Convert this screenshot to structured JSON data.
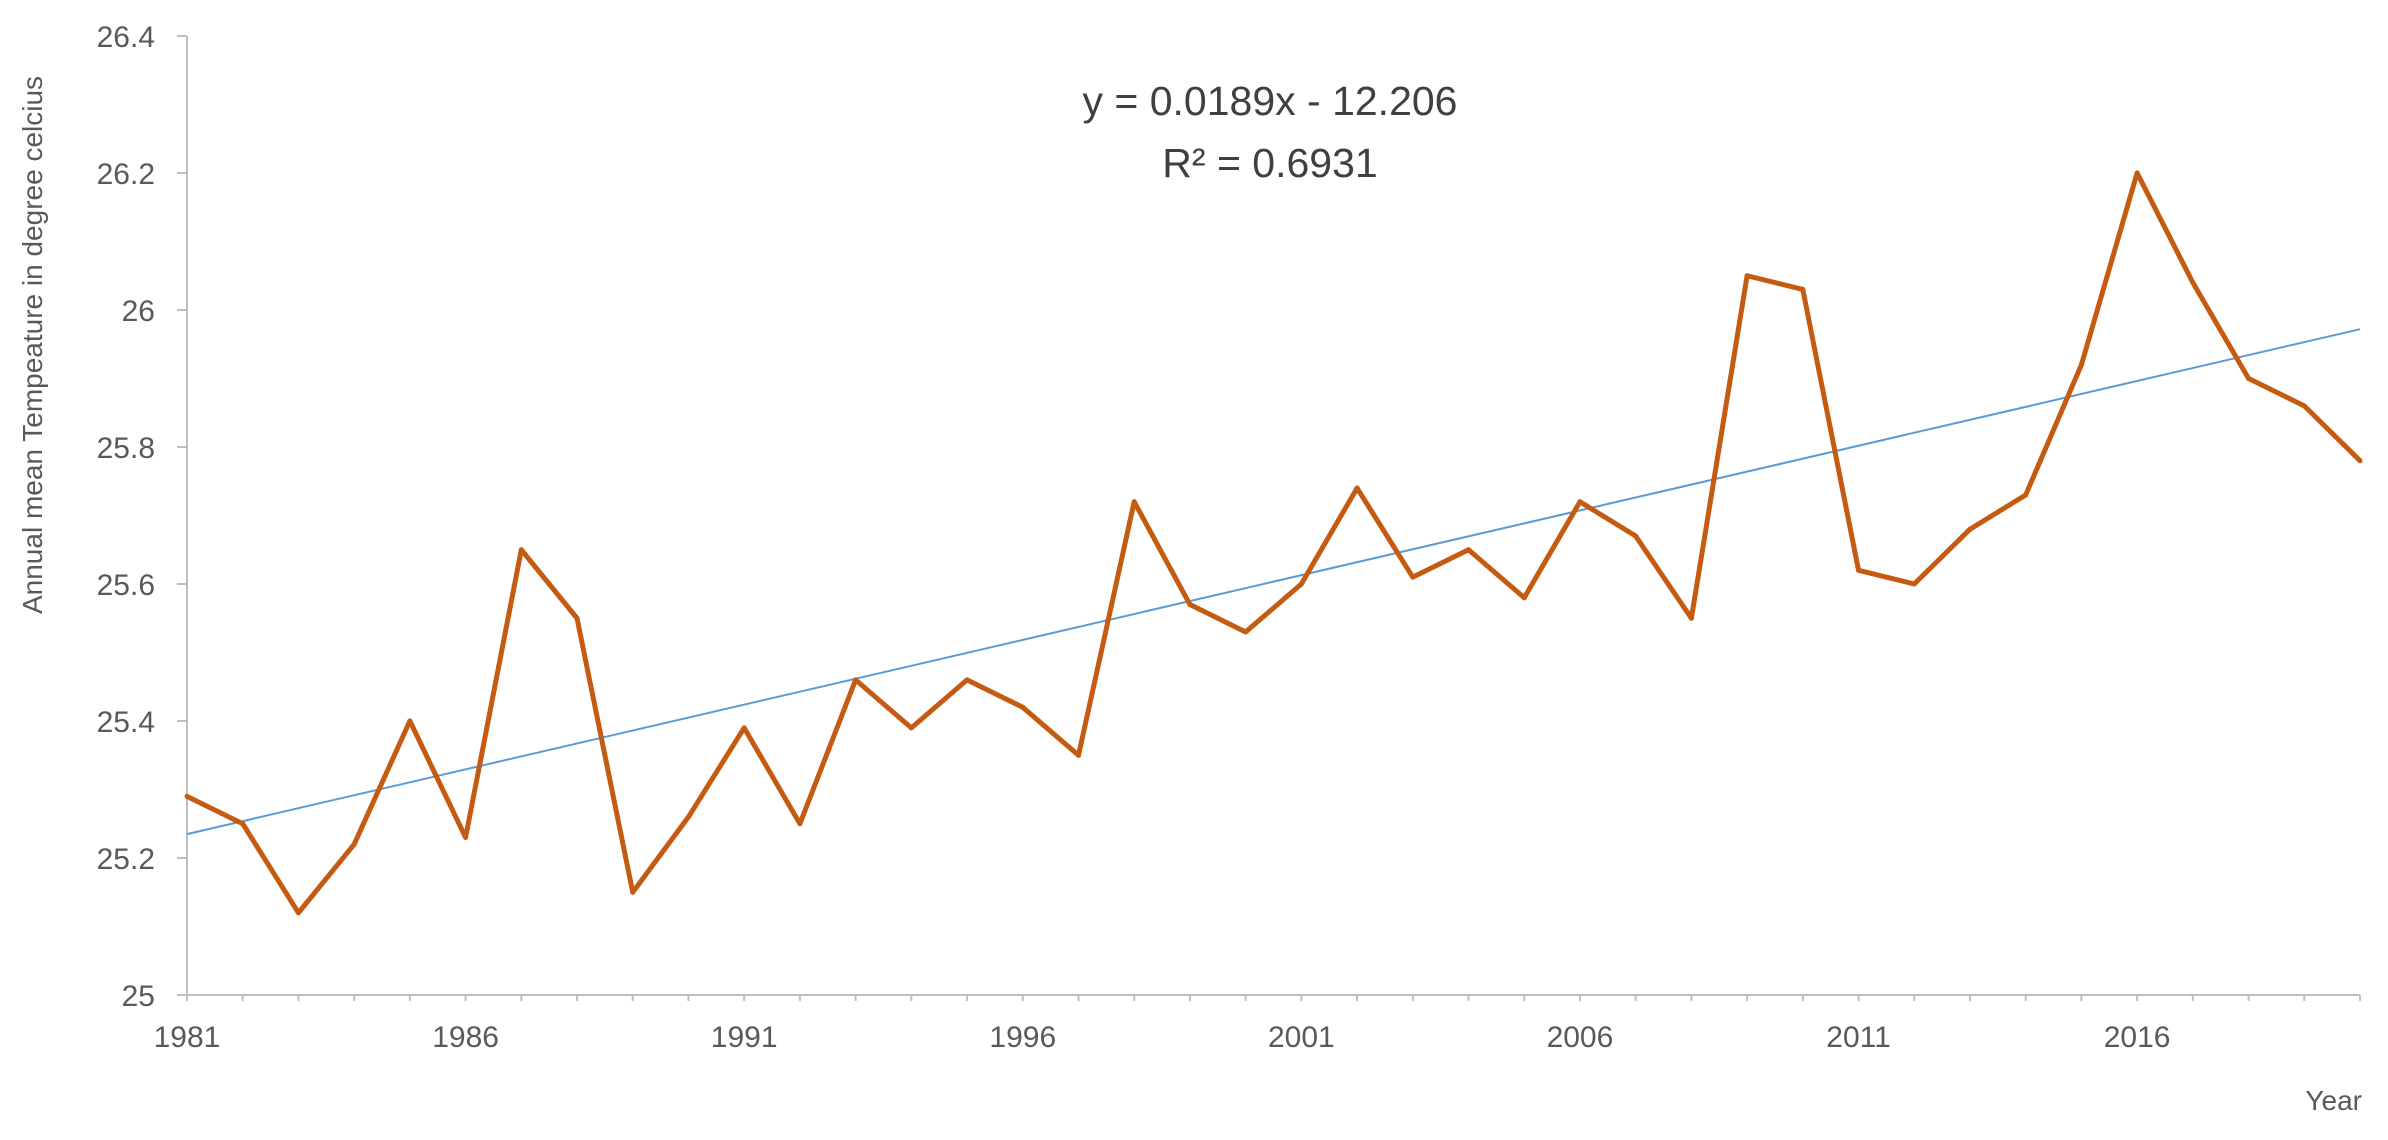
{
  "chart_data": {
    "type": "line",
    "title": "",
    "xlabel": "Year",
    "ylabel": "Annual mean Tempeature in degree celcius",
    "xlim": [
      1981,
      2020
    ],
    "ylim": [
      25,
      26.4
    ],
    "x_ticks": [
      "1981",
      "1986",
      "1991",
      "1996",
      "2001",
      "2006",
      "2011",
      "2016"
    ],
    "y_ticks": [
      "25",
      "25.2",
      "25.4",
      "25.6",
      "25.8",
      "26",
      "26.2",
      "26.4"
    ],
    "grid": false,
    "legend": "none",
    "x": [
      1981,
      1982,
      1983,
      1984,
      1985,
      1986,
      1987,
      1988,
      1989,
      1990,
      1991,
      1992,
      1993,
      1994,
      1995,
      1996,
      1997,
      1998,
      1999,
      2000,
      2001,
      2002,
      2003,
      2004,
      2005,
      2006,
      2007,
      2008,
      2009,
      2010,
      2011,
      2012,
      2013,
      2014,
      2015,
      2016,
      2017,
      2018,
      2019,
      2020
    ],
    "series": [
      {
        "color": "#c55a11",
        "values": [
          25.29,
          25.25,
          25.12,
          25.22,
          25.4,
          25.23,
          25.65,
          25.55,
          25.15,
          25.26,
          25.39,
          25.25,
          25.46,
          25.39,
          25.46,
          25.42,
          25.35,
          25.72,
          25.57,
          25.53,
          25.6,
          25.74,
          25.61,
          25.65,
          25.58,
          25.72,
          25.67,
          25.55,
          26.05,
          26.03,
          25.62,
          25.6,
          25.68,
          25.73,
          25.92,
          26.2,
          26.04,
          25.9,
          25.86,
          25.78
        ]
      }
    ],
    "trendline": {
      "type": "linear",
      "color": "#5b9bd5",
      "slope": 0.0189,
      "intercept": -12.206,
      "equation": "y = 0.0189x - 12.206",
      "r_squared": "R² = 0.6931"
    }
  }
}
